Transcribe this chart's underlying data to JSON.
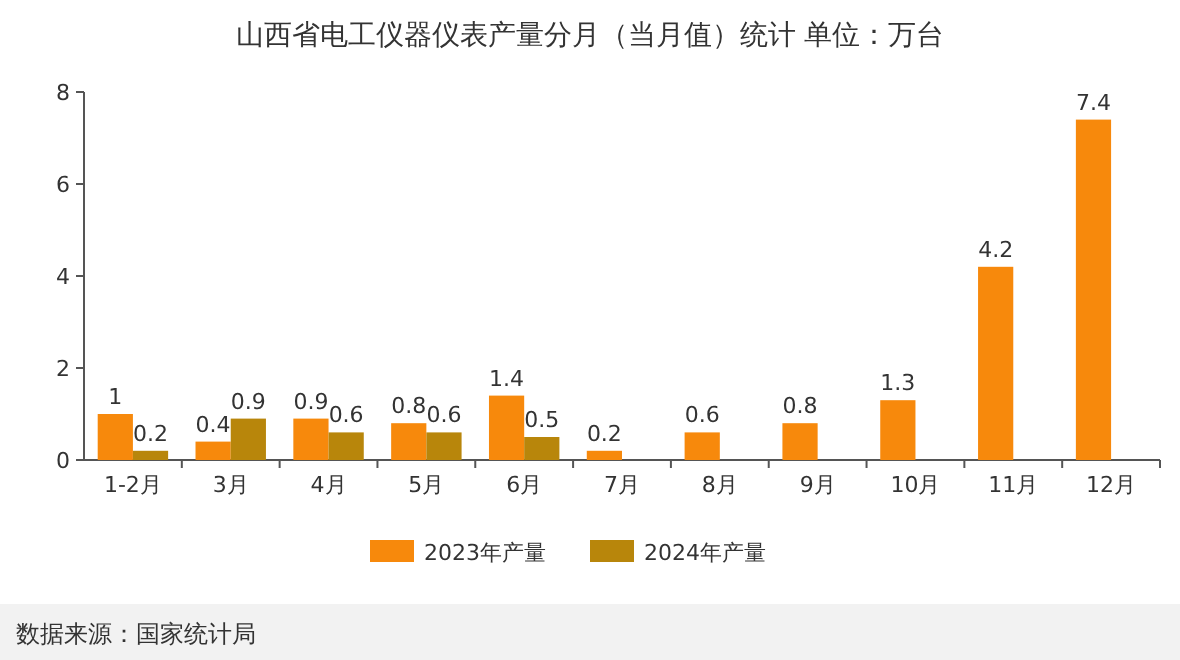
{
  "chart_data": {
    "type": "bar",
    "title": "山西省电工仪器仪表产量分月（当月值）统计 单位：万台",
    "categories": [
      "1-2月",
      "3月",
      "4月",
      "5月",
      "6月",
      "7月",
      "8月",
      "9月",
      "10月",
      "11月",
      "12月"
    ],
    "series": [
      {
        "name": "2023年产量",
        "color": "#f7890c",
        "values": [
          1,
          0.4,
          0.9,
          0.8,
          1.4,
          0.2,
          0.6,
          0.8,
          1.3,
          4.2,
          7.4
        ]
      },
      {
        "name": "2024年产量",
        "color": "#b8860b",
        "values": [
          0.2,
          0.9,
          0.6,
          0.6,
          0.5,
          null,
          null,
          null,
          null,
          null,
          null
        ]
      }
    ],
    "ylim": [
      0,
      8
    ],
    "yticks": [
      0,
      2,
      4,
      6,
      8
    ],
    "data_labels": true,
    "legend": "bottom",
    "annotations": [
      "数据来源：国家统计局"
    ]
  }
}
